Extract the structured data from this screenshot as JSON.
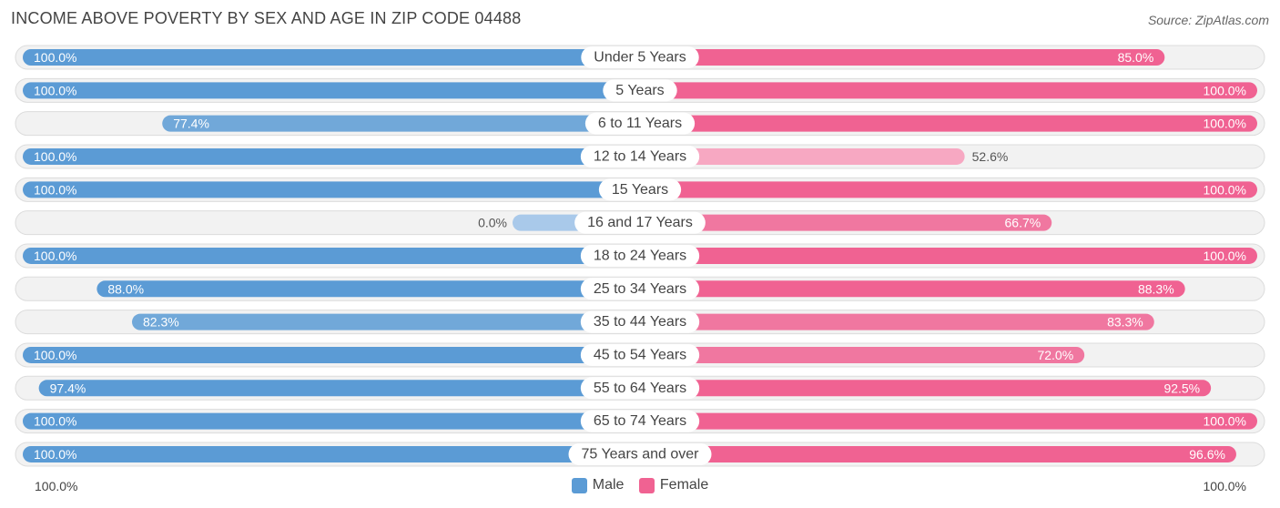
{
  "chart_data": {
    "type": "bar",
    "title": "INCOME ABOVE POVERTY BY SEX AND AGE IN ZIP CODE 04488",
    "source": "Source: ZipAtlas.com",
    "categories": [
      "Under 5 Years",
      "5 Years",
      "6 to 11 Years",
      "12 to 14 Years",
      "15 Years",
      "16 and 17 Years",
      "18 to 24 Years",
      "25 to 34 Years",
      "35 to 44 Years",
      "45 to 54 Years",
      "55 to 64 Years",
      "65 to 74 Years",
      "75 Years and over"
    ],
    "series": [
      {
        "name": "Male",
        "values": [
          100.0,
          100.0,
          77.4,
          100.0,
          100.0,
          0.0,
          100.0,
          88.0,
          82.3,
          100.0,
          97.4,
          100.0,
          100.0
        ],
        "labels": [
          "100.0%",
          "100.0%",
          "77.4%",
          "100.0%",
          "100.0%",
          "0.0%",
          "100.0%",
          "88.0%",
          "82.3%",
          "100.0%",
          "97.4%",
          "100.0%",
          "100.0%"
        ]
      },
      {
        "name": "Female",
        "values": [
          85.0,
          100.0,
          100.0,
          52.6,
          100.0,
          66.7,
          100.0,
          88.3,
          83.3,
          72.0,
          92.5,
          100.0,
          96.6
        ],
        "labels": [
          "85.0%",
          "100.0%",
          "100.0%",
          "52.6%",
          "100.0%",
          "66.7%",
          "100.0%",
          "88.3%",
          "83.3%",
          "72.0%",
          "92.5%",
          "100.0%",
          "96.6%"
        ]
      }
    ],
    "xlim": [
      0,
      100
    ],
    "axis_left_label": "100.0%",
    "axis_right_label": "100.0%",
    "legend_position": "bottom-center",
    "colors": {
      "male": "#5b9bd5",
      "male_light": "#a9c9ea",
      "female": "#f06292",
      "female_light": "#f7a8c2"
    }
  }
}
